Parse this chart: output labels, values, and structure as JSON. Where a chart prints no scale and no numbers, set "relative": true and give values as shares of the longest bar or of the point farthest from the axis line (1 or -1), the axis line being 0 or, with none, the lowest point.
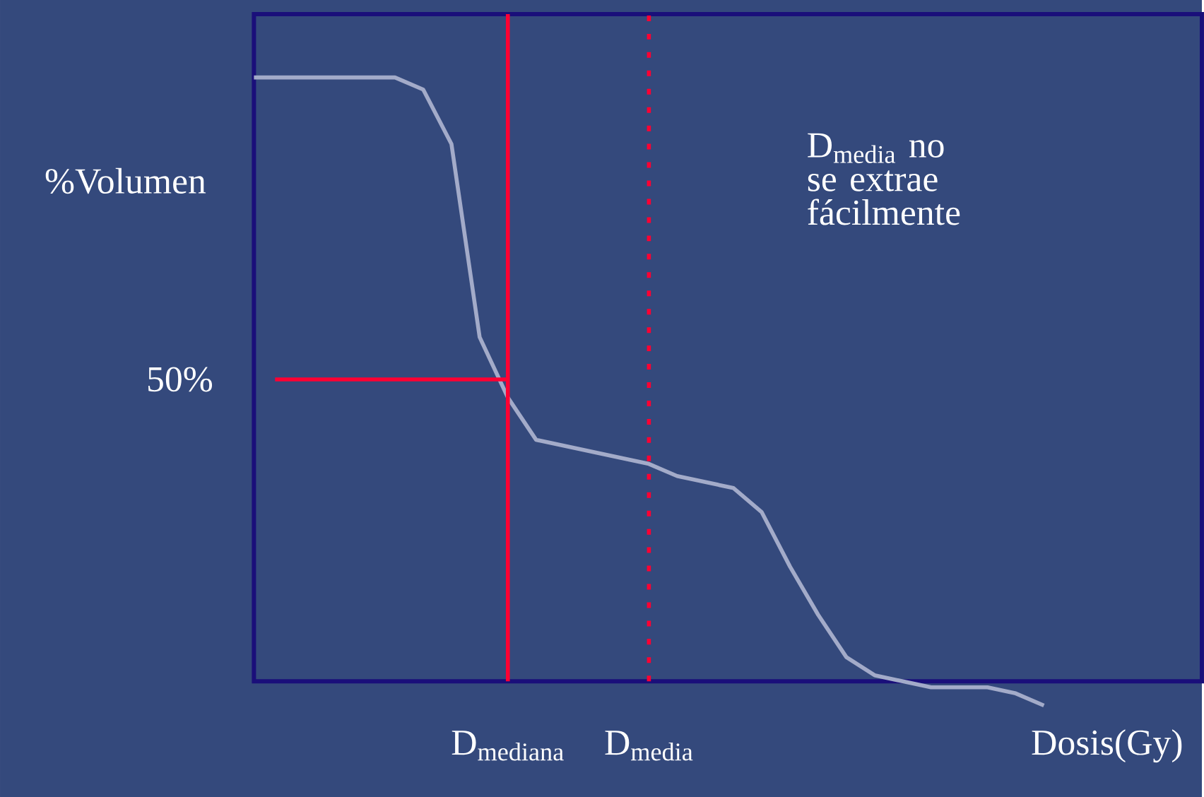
{
  "chart_data": {
    "type": "line",
    "relative": true,
    "tick_labels": "x",
    "xlabel": "Dosis(Gy)",
    "ylabel": "%Volumen",
    "color": "#a3abc9",
    "categories": [
      null,
      null,
      null,
      null,
      null,
      null,
      null,
      null,
      null,
      "D$_{mediana}$",
      null,
      null,
      null,
      null,
      "D$_{media}$",
      null,
      null,
      null,
      null,
      null,
      null,
      null,
      null,
      null,
      null,
      null,
      null,
      null,
      null
    ],
    "values": [
      1,
      1,
      1,
      1,
      1,
      1,
      0.98,
      0.89,
      0.57,
      0.47,
      0.4,
      0.39,
      0.38,
      0.37,
      0.36,
      0.34,
      0.33,
      0.32,
      0.28,
      0.19,
      0.11,
      0.04,
      0.01,
      0,
      -0.01,
      -0.01,
      -0.01,
      -0.02,
      -0.04
    ],
    "ref_lines": [
      {
        "axis": "x",
        "value": "D$_{mediana}$",
        "color": "#ff0033",
        "line_style": "solid"
      },
      {
        "axis": "x",
        "value": "D$_{media}$",
        "color": "#ff0033",
        "line_style": "dotted"
      },
      {
        "axis": "y",
        "value": 0.5,
        "label": "50%",
        "color": "#ff0033",
        "line_style": "solid"
      }
    ],
    "annotations": [
      "D$_{media}$ no se extrae fácilmente"
    ]
  }
}
